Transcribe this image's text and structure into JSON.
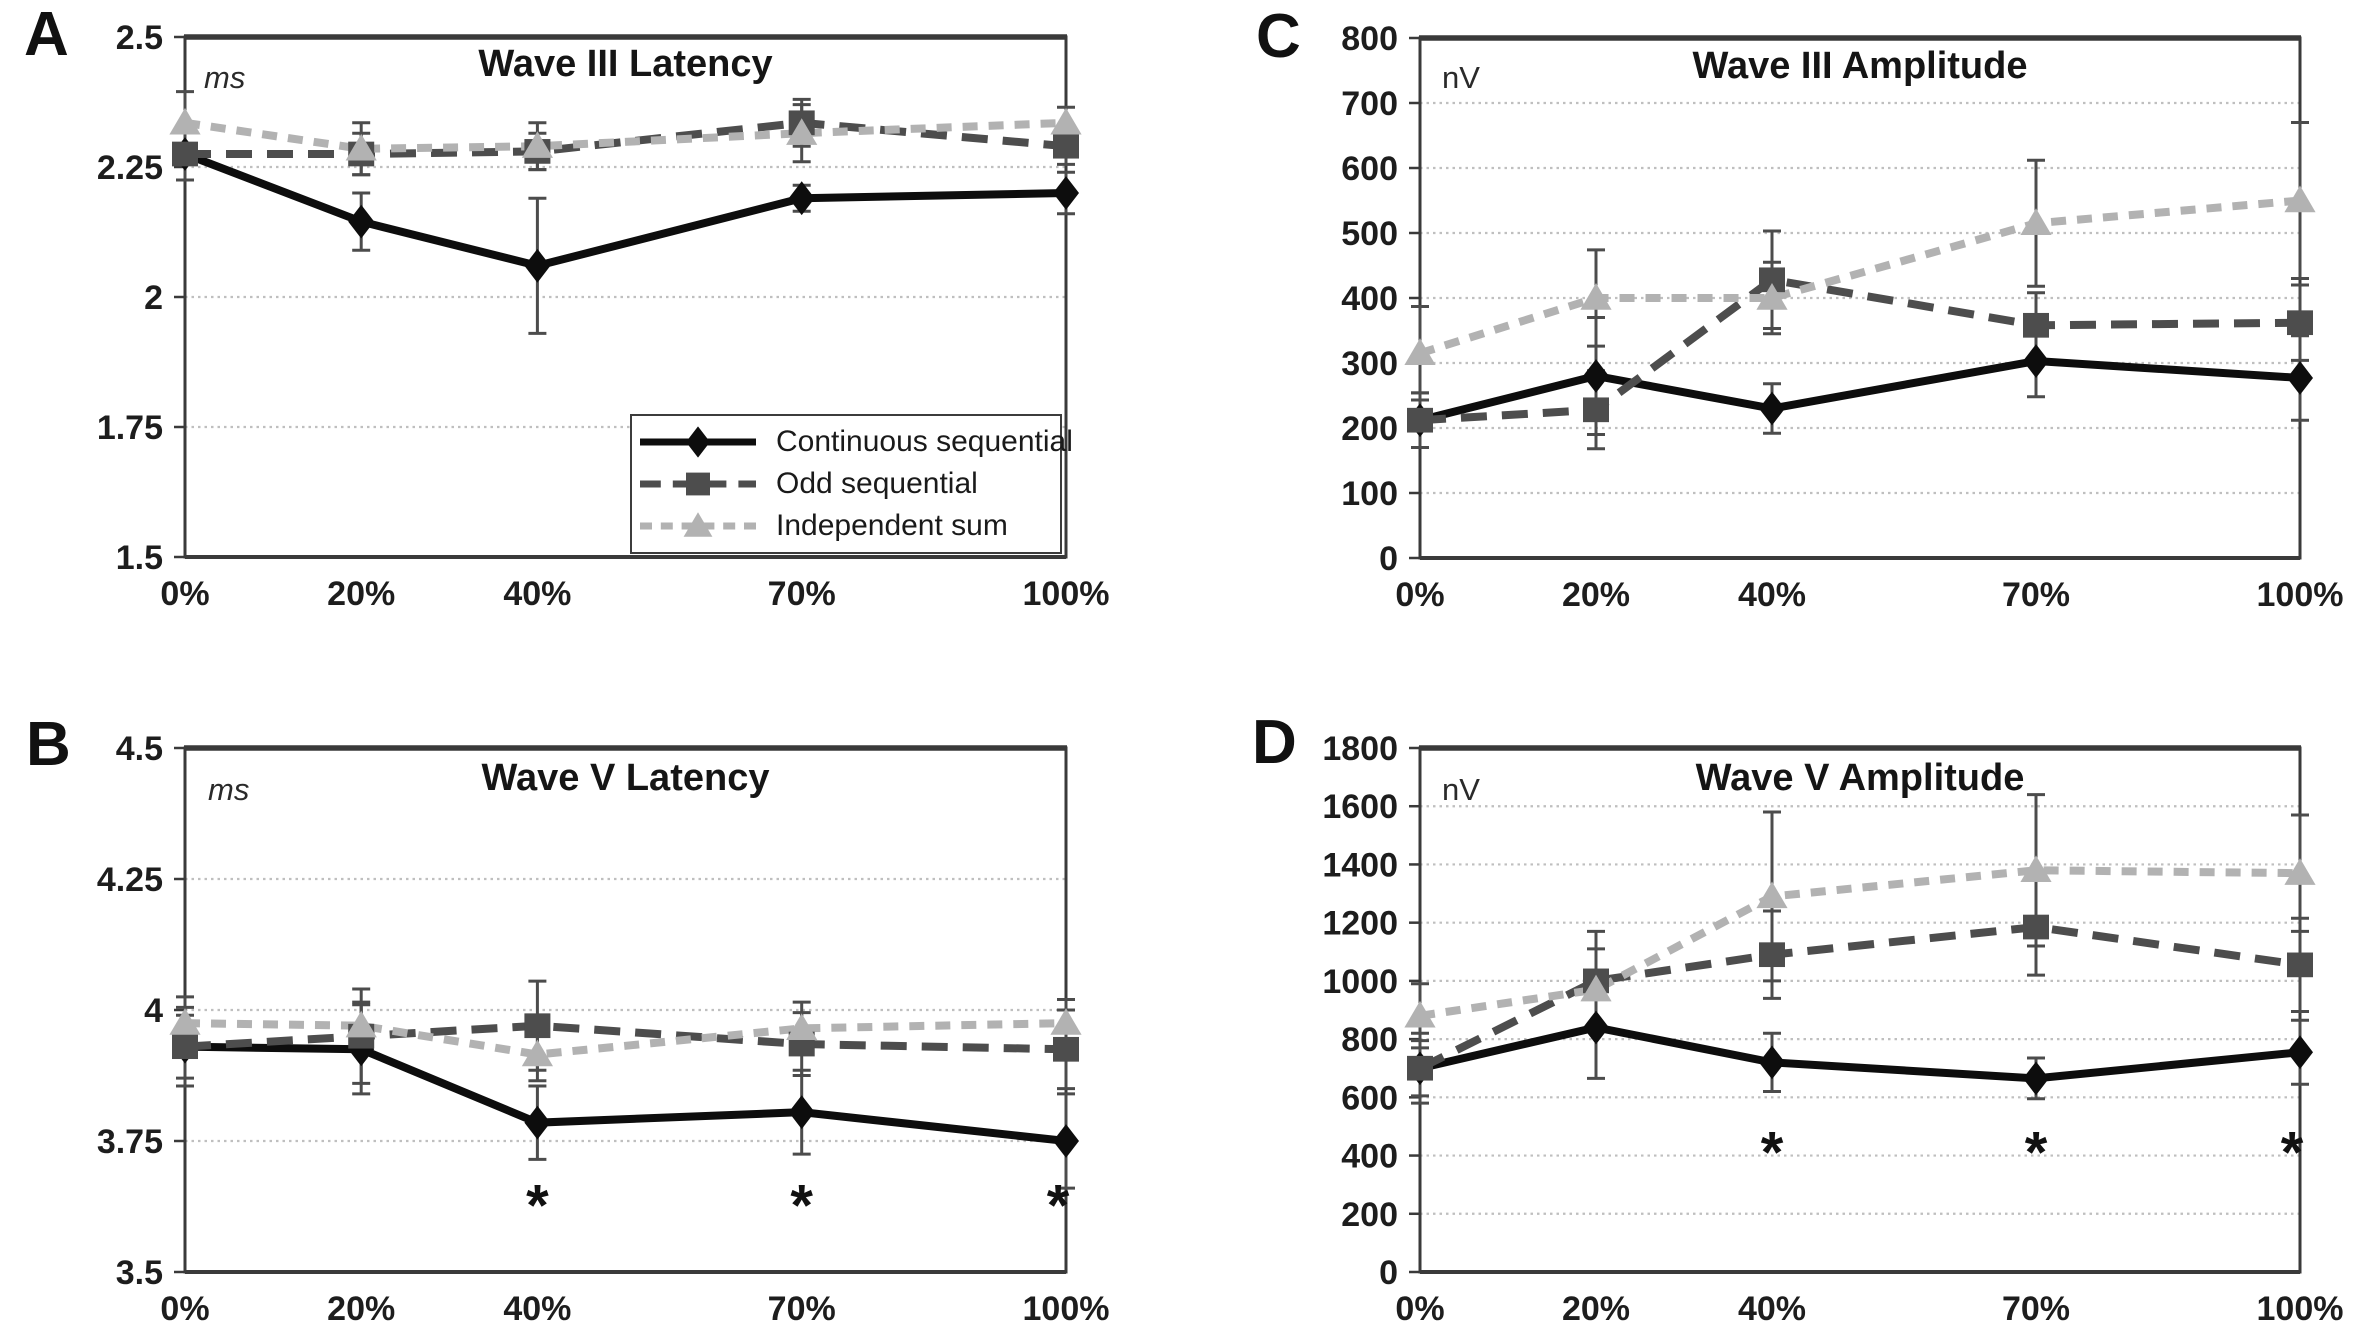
{
  "figure": {
    "background": "#ffffff",
    "text_color": "#1a1a1a",
    "axis_color": "#3a3a3a",
    "gridline_color": "#bfbfbf",
    "error_bar_color": "#4c4c4c",
    "significance_marker": "*"
  },
  "x_axis": {
    "categories": [
      "0%",
      "20%",
      "40%",
      "70%",
      "100%"
    ],
    "values": [
      0,
      20,
      40,
      70,
      100
    ]
  },
  "series_styles": [
    {
      "name": "Continuous sequential",
      "color": "#0d0d0d",
      "marker": "diamond",
      "line": "solid"
    },
    {
      "name": "Odd sequential",
      "color": "#4d4d4d",
      "marker": "square",
      "line": "dashed-long"
    },
    {
      "name": "Independent sum",
      "color": "#b2b2b2",
      "marker": "triangle",
      "line": "dashed-short"
    }
  ],
  "legend": {
    "entries": [
      "Continuous sequential",
      "Odd sequential",
      "Independent sum"
    ]
  },
  "chart_data": [
    {
      "panel_label": "A",
      "type": "line",
      "title": "Wave III Latency",
      "unit": "ms",
      "ylim": [
        1.5,
        2.5
      ],
      "ytick_values": [
        2.5,
        2.25,
        2.0,
        1.75,
        1.5
      ],
      "ytick_labels": [
        "2.5",
        "2.25",
        "2",
        "1.75",
        "1.5"
      ],
      "x_categories": [
        "0%",
        "20%",
        "40%",
        "70%",
        "100%"
      ],
      "series": [
        {
          "name": "Continuous sequential",
          "values": [
            2.275,
            2.145,
            2.06,
            2.19,
            2.2
          ],
          "errors": [
            0.05,
            0.055,
            0.13,
            0.025,
            0.04
          ]
        },
        {
          "name": "Odd sequential",
          "values": [
            2.275,
            2.275,
            2.28,
            2.335,
            2.29
          ],
          "errors": [
            0.05,
            0.04,
            0.035,
            0.045,
            0.035
          ]
        },
        {
          "name": "Independent sum",
          "values": [
            2.335,
            2.285,
            2.29,
            2.315,
            2.335
          ],
          "errors": [
            0.06,
            0.05,
            0.045,
            0.055,
            0.03
          ]
        }
      ],
      "significance": {
        "x_values": [],
        "y_value": null
      },
      "has_legend": true
    },
    {
      "panel_label": "B",
      "type": "line",
      "title": "Wave V Latency",
      "unit": "ms",
      "ylim": [
        3.5,
        4.5
      ],
      "ytick_values": [
        4.5,
        4.25,
        4.0,
        3.75,
        3.5
      ],
      "ytick_labels": [
        "4.5",
        "4.25",
        "4",
        "3.75",
        "3.5"
      ],
      "x_categories": [
        "0%",
        "20%",
        "40%",
        "70%",
        "100%"
      ],
      "series": [
        {
          "name": "Continuous sequential",
          "values": [
            3.93,
            3.925,
            3.785,
            3.805,
            3.75
          ],
          "errors": [
            0.075,
            0.085,
            0.07,
            0.08,
            0.09
          ]
        },
        {
          "name": "Odd sequential",
          "values": [
            3.93,
            3.95,
            3.97,
            3.935,
            3.925
          ],
          "errors": [
            0.06,
            0.09,
            0.085,
            0.06,
            0.075
          ]
        },
        {
          "name": "Independent sum",
          "values": [
            3.975,
            3.97,
            3.915,
            3.965,
            3.975
          ],
          "errors": [
            0.05,
            0.045,
            0.05,
            0.05,
            0.045
          ]
        }
      ],
      "significance": {
        "x_values": [
          40,
          70,
          100
        ],
        "y_value": 3.665
      },
      "has_legend": false
    },
    {
      "panel_label": "C",
      "type": "line",
      "title": "Wave III Amplitude",
      "unit": "nV",
      "ylim": [
        0,
        800
      ],
      "ytick_values": [
        800,
        700,
        600,
        500,
        400,
        300,
        200,
        100,
        0
      ],
      "ytick_labels": [
        "800",
        "700",
        "600",
        "500",
        "400",
        "300",
        "200",
        "100",
        "0"
      ],
      "x_categories": [
        "0%",
        "20%",
        "40%",
        "70%",
        "100%"
      ],
      "series": [
        {
          "name": "Continuous sequential",
          "values": [
            212,
            280,
            230,
            303,
            277
          ],
          "errors": [
            42,
            90,
            38,
            55,
            65
          ]
        },
        {
          "name": "Odd sequential",
          "values": [
            212,
            228,
            428,
            358,
            362
          ],
          "errors": [
            42,
            60,
            75,
            50,
            58
          ]
        },
        {
          "name": "Independent sum",
          "values": [
            315,
            400,
            400,
            515,
            550
          ],
          "errors": [
            72,
            74,
            55,
            97,
            120
          ]
        }
      ],
      "significance": {
        "x_values": [],
        "y_value": null
      },
      "has_legend": false
    },
    {
      "panel_label": "D",
      "type": "line",
      "title": "Wave V Amplitude",
      "unit": "nV",
      "ylim": [
        0,
        1800
      ],
      "ytick_values": [
        1800,
        1600,
        1400,
        1200,
        1000,
        800,
        600,
        400,
        200,
        0
      ],
      "ytick_labels": [
        "1800",
        "1600",
        "1400",
        "1200",
        "1000",
        "800",
        "600",
        "400",
        "200",
        "0"
      ],
      "x_categories": [
        "0%",
        "20%",
        "40%",
        "70%",
        "100%"
      ],
      "series": [
        {
          "name": "Continuous sequential",
          "values": [
            700,
            840,
            720,
            665,
            755
          ],
          "errors": [
            120,
            175,
            100,
            70,
            110
          ]
        },
        {
          "name": "Odd sequential",
          "values": [
            700,
            1000,
            1090,
            1185,
            1055
          ],
          "errors": [
            95,
            170,
            150,
            165,
            160
          ]
        },
        {
          "name": "Independent sum",
          "values": [
            880,
            970,
            1290,
            1380,
            1370
          ],
          "errors": [
            110,
            140,
            290,
            260,
            200
          ]
        }
      ],
      "significance": {
        "x_values": [
          40,
          70,
          100
        ],
        "y_value": 480
      },
      "has_legend": false
    }
  ]
}
